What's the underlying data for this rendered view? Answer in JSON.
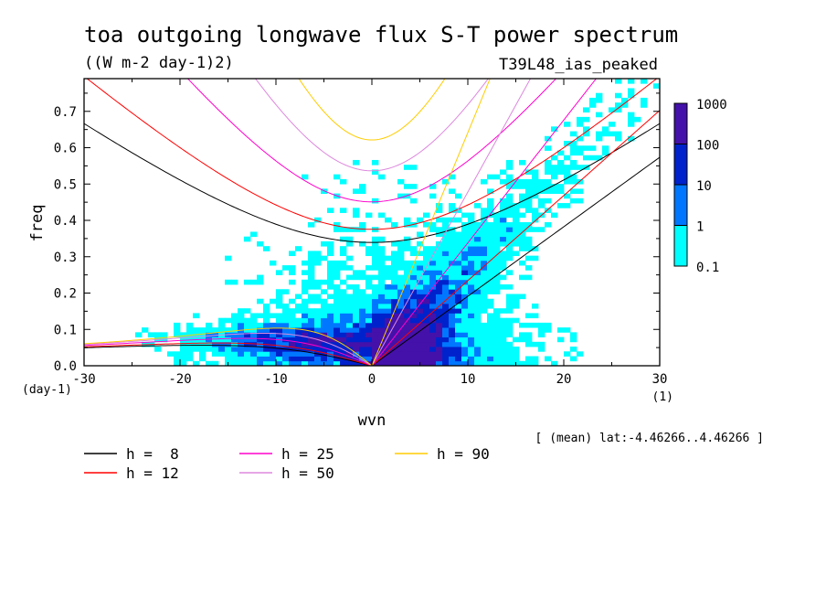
{
  "chart_data": {
    "type": "heatmap",
    "title": "toa outgoing longwave flux S-T power spectrum",
    "subtitle": "((W m-2 day-1)2)",
    "run_label": "T39L48_ias_peaked",
    "xlabel": "wvn",
    "ylabel": "freq",
    "x_unit": "(1)",
    "y_unit": "(day-1)",
    "xlim": [
      -30,
      30
    ],
    "ylim": [
      0,
      0.79
    ],
    "x_ticks": [
      -30,
      -20,
      -10,
      0,
      10,
      20,
      30
    ],
    "y_ticks": [
      0.0,
      0.1,
      0.2,
      0.3,
      0.4,
      0.5,
      0.6,
      0.7
    ],
    "x_tick_labels": [
      "-30",
      "-20",
      "-10",
      "0",
      "10",
      "20",
      "30"
    ],
    "y_tick_labels": [
      "0.0",
      "0.1",
      "0.2",
      "0.3",
      "0.4",
      "0.5",
      "0.6",
      "0.7"
    ],
    "contour_levels": [
      0.1,
      1,
      10,
      100,
      1000
    ],
    "colorbar_labels": [
      "1000",
      "100",
      "10",
      "1",
      "0.1"
    ],
    "colorbar_colors": [
      "#00ffff",
      "#0077ff",
      "#0022cc",
      "#4411aa"
    ],
    "footnote": "[ (mean) lat:-4.46266..4.46266 ]",
    "dispersion_curves": [
      {
        "h": 8,
        "label": "h =  8",
        "color": "#000000"
      },
      {
        "h": 12,
        "label": "h = 12",
        "color": "#ff0000"
      },
      {
        "h": 25,
        "label": "h = 25",
        "color": "#ff00cc"
      },
      {
        "h": 50,
        "label": "h = 50",
        "color": "#dd88dd"
      },
      {
        "h": 90,
        "label": "h = 90",
        "color": "#ffcc00"
      }
    ]
  }
}
